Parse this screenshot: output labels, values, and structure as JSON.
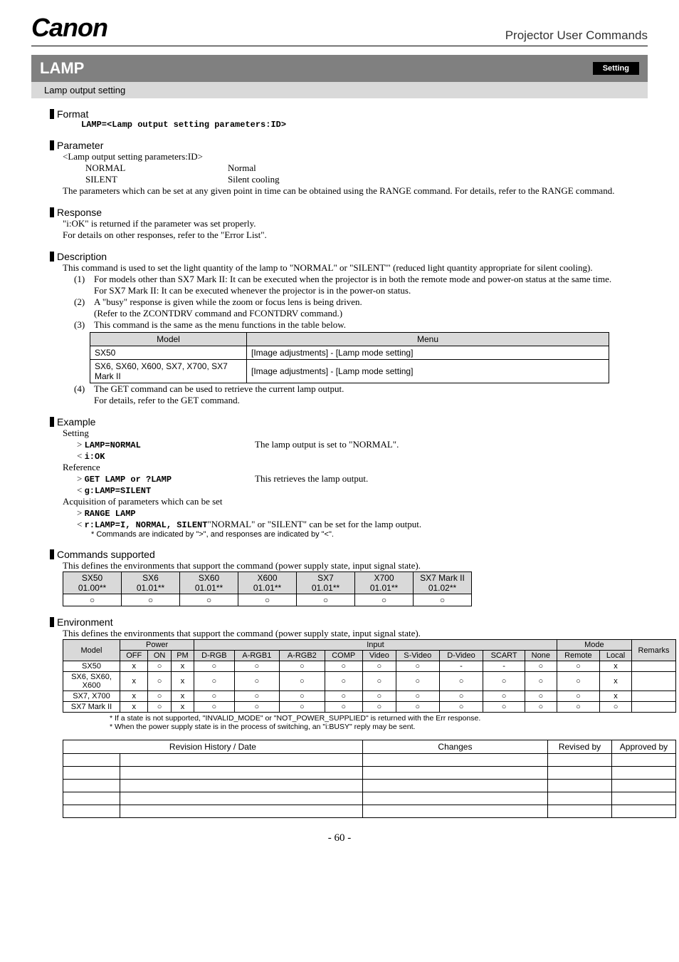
{
  "header": {
    "logo": "Canon",
    "right": "Projector User Commands"
  },
  "title": {
    "name": "LAMP",
    "badge": "Setting",
    "subtitle": "Lamp output setting"
  },
  "format": {
    "heading": "Format",
    "code": "LAMP=<Lamp output setting parameters:ID>"
  },
  "parameter": {
    "heading": "Parameter",
    "line1": "<Lamp output setting parameters:ID>",
    "rows": [
      {
        "id": "NORMAL",
        "desc": "Normal"
      },
      {
        "id": "SILENT",
        "desc": "Silent cooling"
      }
    ],
    "note": "The parameters which can be set at any given point in time can be obtained using the RANGE command. For details, refer to the RANGE command."
  },
  "response": {
    "heading": "Response",
    "line1": "\"i:OK\" is returned if the parameter was set properly.",
    "line2": "For details on other responses, refer to the \"Error List\"."
  },
  "description": {
    "heading": "Description",
    "intro": "This command is used to set the light quantity of the lamp to \"NORMAL\" or \"SILENT'\" (reduced light quantity appropriate for silent cooling).",
    "item1a": "For models other than SX7 Mark II: It can be executed when the projector is in both the remote mode and power-on status at the same time.",
    "item1b": "For SX7 Mark II: It can be executed whenever the projector is in the power-on status.",
    "item2a": "A \"busy\" response is given while the zoom or focus lens is being driven.",
    "item2b": "(Refer to the ZCONTDRV command and FCONTDRV command.)",
    "item3": "This command is the same as the menu functions in the table below.",
    "tbl_h1": "Model",
    "tbl_h2": "Menu",
    "tbl_r1c1": "SX50",
    "tbl_r1c2": "[Image adjustments] - [Lamp mode setting]",
    "tbl_r2c1": "SX6, SX60, X600, SX7, X700, SX7 Mark II",
    "tbl_r2c2": "[Image adjustments] - [Lamp mode setting]",
    "item4a": "The GET command can be used to retrieve the current lamp output.",
    "item4b": "For details, refer to the GET command."
  },
  "example": {
    "heading": "Example",
    "l1": "Setting",
    "l2a": "> ",
    "l2b": "LAMP=NORMAL",
    "l2c": "The lamp output is set to \"NORMAL\".",
    "l3a": "< ",
    "l3b": "i:OK",
    "l4": "Reference",
    "l5a": "> ",
    "l5b": "GET LAMP or ?LAMP",
    "l5c": "This retrieves the lamp output.",
    "l6a": "< ",
    "l6b": "g:LAMP=SILENT",
    "l7": "Acquisition of parameters which can be set",
    "l8a": "> ",
    "l8b": "RANGE LAMP",
    "l9a": "< ",
    "l9b": "r:LAMP=I, NORMAL, SILENT",
    "l9c": " \"NORMAL\" or \"SILENT\" can be set for the lamp output.",
    "note": "*  Commands are indicated by \">\", and responses are indicated by \"<\"."
  },
  "commands": {
    "heading": "Commands supported",
    "intro": "This defines the environments that support the command (power supply state, input signal state).",
    "headers": [
      [
        "SX50",
        "01.00**"
      ],
      [
        "SX6",
        "01.01**"
      ],
      [
        "SX60",
        "01.01**"
      ],
      [
        "X600",
        "01.01**"
      ],
      [
        "SX7",
        "01.01**"
      ],
      [
        "X700",
        "01.01**"
      ],
      [
        "SX7 Mark II",
        "01.02**"
      ]
    ],
    "row": [
      "○",
      "○",
      "○",
      "○",
      "○",
      "○",
      "○"
    ]
  },
  "environment": {
    "heading": "Environment",
    "intro": "This defines the environments that support the command (power supply state, input signal state).",
    "h_model": "Model",
    "h_power": "Power",
    "h_input": "Input",
    "h_mode": "Mode",
    "h_remarks": "Remarks",
    "sub": [
      "OFF",
      "ON",
      "PM",
      "D-RGB",
      "A-RGB1",
      "A-RGB2",
      "COMP",
      "Video",
      "S-Video",
      "D-Video",
      "SCART",
      "None",
      "Remote",
      "Local"
    ],
    "rows": [
      {
        "m": "SX50",
        "c": [
          "x",
          "○",
          "x",
          "○",
          "○",
          "○",
          "○",
          "○",
          "○",
          "-",
          "-",
          "○",
          "○",
          "x",
          ""
        ]
      },
      {
        "m": "SX6, SX60, X600",
        "c": [
          "x",
          "○",
          "x",
          "○",
          "○",
          "○",
          "○",
          "○",
          "○",
          "○",
          "○",
          "○",
          "○",
          "x",
          ""
        ]
      },
      {
        "m": "SX7, X700",
        "c": [
          "x",
          "○",
          "x",
          "○",
          "○",
          "○",
          "○",
          "○",
          "○",
          "○",
          "○",
          "○",
          "○",
          "x",
          ""
        ]
      },
      {
        "m": "SX7 Mark II",
        "c": [
          "x",
          "○",
          "x",
          "○",
          "○",
          "○",
          "○",
          "○",
          "○",
          "○",
          "○",
          "○",
          "○",
          "○",
          ""
        ]
      }
    ],
    "fn1": "*  If a state is not supported, \"INVALID_MODE\" or \"NOT_POWER_SUPPLIED\" is returned with the Err response.",
    "fn2": "*  When the power supply state is in the process of switching, an \"i:BUSY\" reply may be sent."
  },
  "revtable": {
    "h1": "Revision History / Date",
    "h2": "Changes",
    "h3": "Revised by",
    "h4": "Approved by"
  },
  "pagenum": "- 60 -"
}
